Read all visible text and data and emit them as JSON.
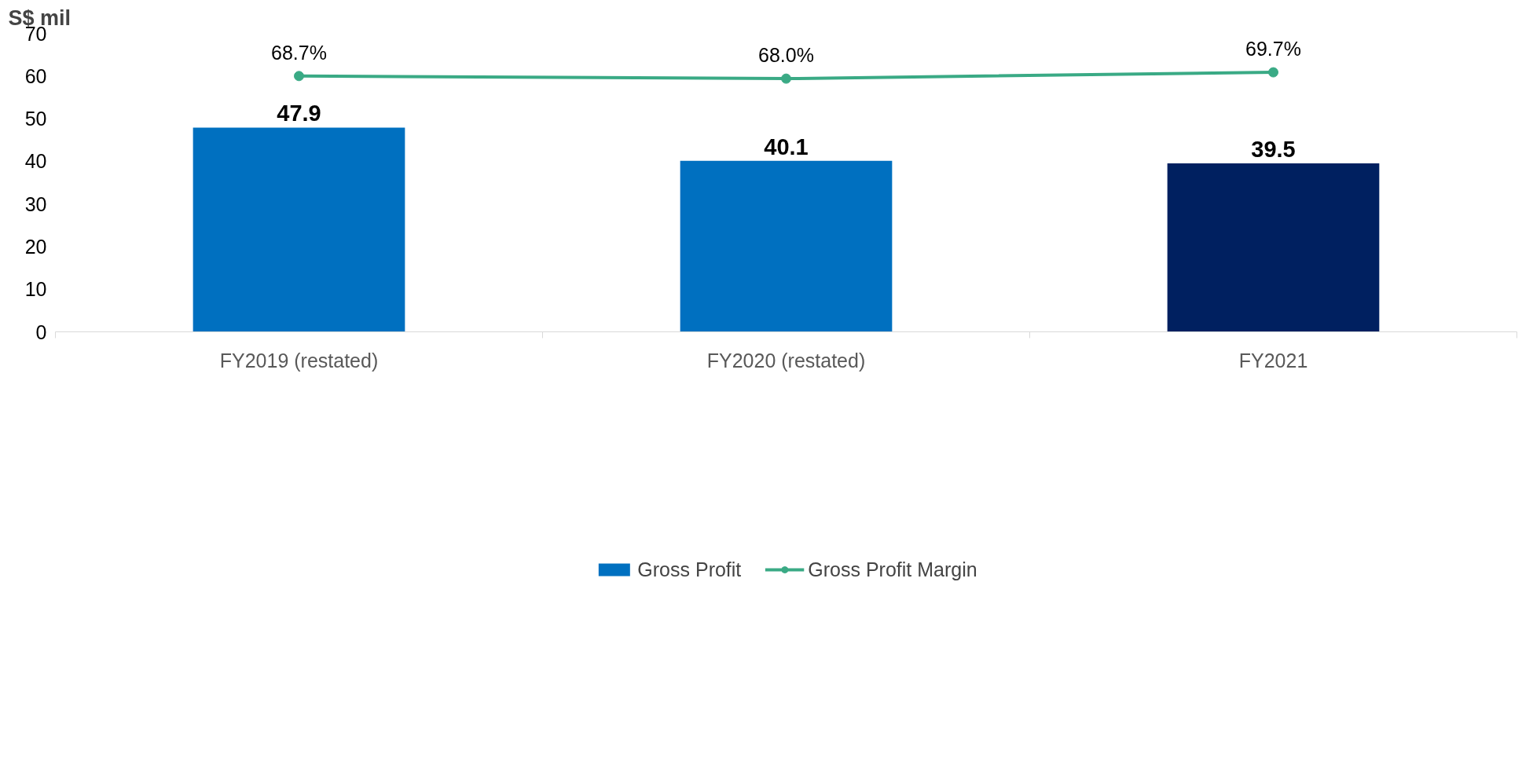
{
  "chart_data": {
    "type": "bar",
    "ylabel": "S$ mil",
    "categories": [
      "FY2019 (restated)",
      "FY2020 (restated)",
      "FY2021"
    ],
    "ylim": [
      0,
      70
    ],
    "yticks": [
      0,
      10,
      20,
      30,
      40,
      50,
      60,
      70
    ],
    "tick_labels": "xy",
    "grid": false,
    "legend": "bottom",
    "marker": "circle",
    "series": [
      {
        "name": "Gross Profit",
        "color": "#0070c0",
        "colors": [
          "#0070c0",
          "#0070c0",
          "#002060"
        ],
        "values": [
          47.9,
          40.1,
          39.5
        ],
        "value_labels": [
          "47.9",
          "40.1",
          "39.5"
        ]
      },
      {
        "name": "Gross Profit Margin",
        "type": "line",
        "axis": "y2",
        "color": "#3aaa85",
        "values": [
          68.7,
          68.0,
          69.7
        ],
        "value_labels": [
          "68.7%",
          "68.0%",
          "69.7%"
        ]
      }
    ]
  }
}
